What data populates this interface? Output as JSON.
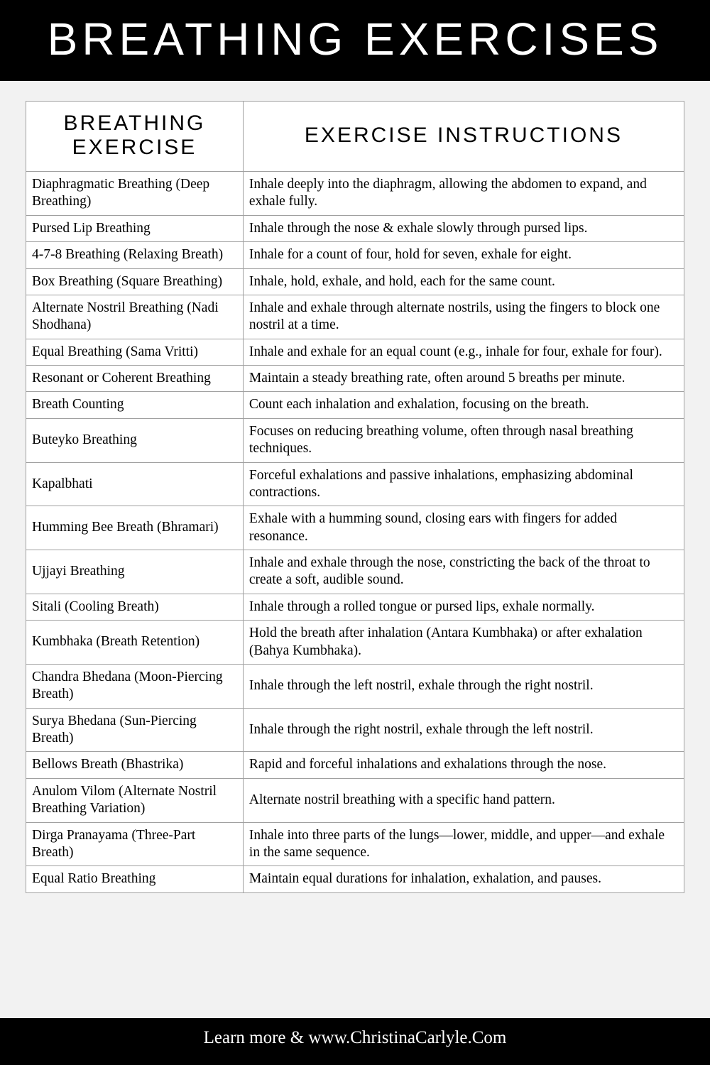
{
  "header": {
    "title": "BREATHING EXERCISES"
  },
  "table": {
    "col1_header": "BREATHING EXERCISE",
    "col2_header": "EXERCISE INSTRUCTIONS",
    "rows": [
      {
        "name": "Diaphragmatic Breathing (Deep Breathing)",
        "instr": "Inhale deeply into the diaphragm, allowing the abdomen to expand, and exhale fully."
      },
      {
        "name": "Pursed Lip Breathing",
        "instr": "Inhale through the nose & exhale slowly through pursed lips."
      },
      {
        "name": "4-7-8 Breathing (Relaxing Breath)",
        "instr": "Inhale for a count of four, hold for seven, exhale for eight."
      },
      {
        "name": "Box Breathing (Square Breathing)",
        "instr": "Inhale, hold, exhale, and hold, each for the same count."
      },
      {
        "name": "Alternate Nostril Breathing (Nadi Shodhana)",
        "instr": "Inhale and exhale through alternate nostrils, using the fingers to block one nostril at a time."
      },
      {
        "name": "Equal Breathing (Sama Vritti)",
        "instr": "Inhale and exhale for an equal count (e.g., inhale for four, exhale for four)."
      },
      {
        "name": "Resonant or Coherent Breathing",
        "instr": "Maintain a steady breathing rate, often around 5 breaths per minute."
      },
      {
        "name": "Breath Counting",
        "instr": "Count each inhalation and exhalation, focusing on the breath."
      },
      {
        "name": "Buteyko Breathing",
        "instr": "Focuses on reducing breathing volume, often through nasal breathing techniques."
      },
      {
        "name": "Kapalbhati",
        "instr": "Forceful exhalations and passive inhalations, emphasizing abdominal contractions."
      },
      {
        "name": "Humming Bee Breath (Bhramari)",
        "instr": "Exhale with a humming sound, closing ears with fingers for added resonance."
      },
      {
        "name": "Ujjayi Breathing",
        "instr": "Inhale and exhale through the nose, constricting the back of the throat to create a soft, audible sound."
      },
      {
        "name": "Sitali (Cooling Breath)",
        "instr": "Inhale through a rolled tongue or pursed lips, exhale normally."
      },
      {
        "name": "Kumbhaka (Breath Retention)",
        "instr": "Hold the breath after inhalation (Antara Kumbhaka) or after exhalation (Bahya Kumbhaka)."
      },
      {
        "name": "Chandra Bhedana (Moon-Piercing Breath)",
        "instr": "Inhale through the left nostril, exhale through the right nostril."
      },
      {
        "name": "Surya Bhedana (Sun-Piercing Breath)",
        "instr": "Inhale through the right nostril, exhale through the left nostril."
      },
      {
        "name": "Bellows Breath (Bhastrika)",
        "instr": "Rapid and forceful inhalations and exhalations through the nose."
      },
      {
        "name": "Anulom Vilom (Alternate Nostril Breathing Variation)",
        "instr": "Alternate nostril breathing with a specific hand pattern."
      },
      {
        "name": "Dirga Pranayama (Three-Part Breath)",
        "instr": "Inhale into three parts of the lungs—lower, middle, and upper—and exhale in the same sequence."
      },
      {
        "name": "Equal Ratio Breathing",
        "instr": "Maintain equal durations for inhalation, exhalation, and pauses."
      }
    ]
  },
  "footer": {
    "text": "Learn more & www.ChristinaCarlyle.Com"
  }
}
